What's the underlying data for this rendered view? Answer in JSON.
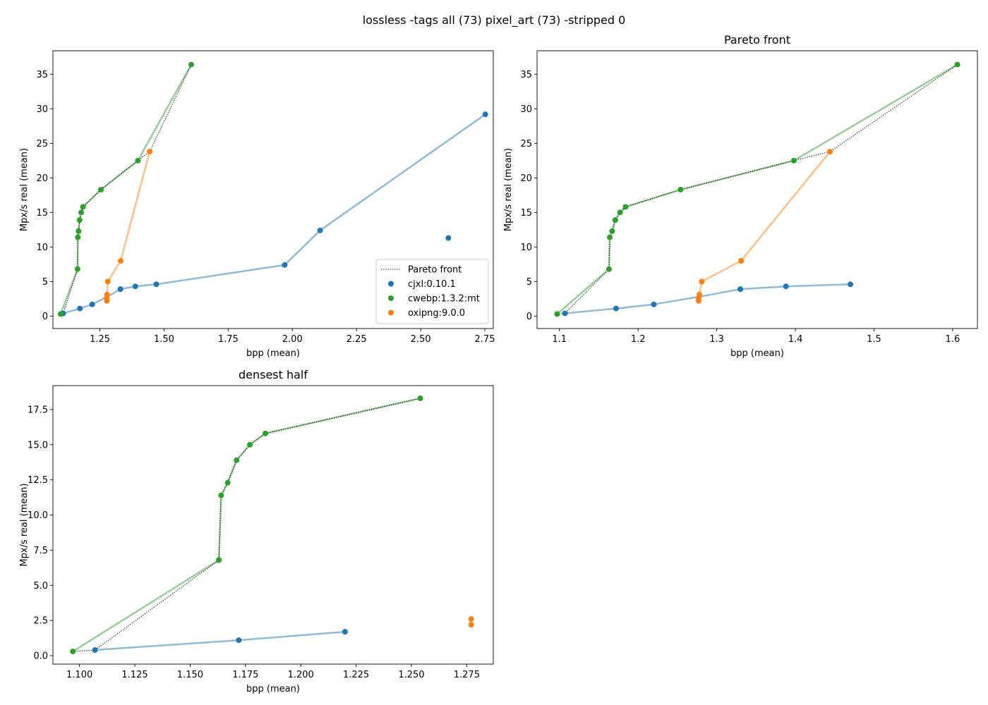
{
  "figure": {
    "suptitle": "lossless -tags all (73) pixel_art (73) -stripped 0"
  },
  "colors": {
    "cjxl:0.10.1": "#1f77b4",
    "cwebp:1.3.2:mt": "#2ca02c",
    "oxipng:9.0.0": "#ff7f0e",
    "pareto": "#000000"
  },
  "legend": {
    "panel": 0,
    "location": "lower-right",
    "entries": [
      {
        "label": "Pareto front",
        "kind": "line"
      },
      {
        "label": "cjxl:0.10.1",
        "kind": "marker",
        "series": "cjxl:0.10.1"
      },
      {
        "label": "cwebp:1.3.2:mt",
        "kind": "marker",
        "series": "cwebp:1.3.2:mt"
      },
      {
        "label": "oxipng:9.0.0",
        "kind": "marker",
        "series": "oxipng:9.0.0"
      }
    ]
  },
  "chart_data": [
    {
      "type": "scatter",
      "title": "",
      "xlabel": "bpp (mean)",
      "ylabel": "Mpx/s real (mean)",
      "xlim": [
        1.067,
        2.783
      ],
      "ylim": [
        -1.8,
        38.4
      ],
      "xticks": [
        1.25,
        1.5,
        1.75,
        2.0,
        2.25,
        2.5,
        2.75
      ],
      "xtick_labels": [
        "1.25",
        "1.50",
        "1.75",
        "2.00",
        "2.25",
        "2.50",
        "2.75"
      ],
      "yticks": [
        0,
        5,
        10,
        15,
        20,
        25,
        30,
        35
      ],
      "ytick_labels": [
        "0",
        "5",
        "10",
        "15",
        "20",
        "25",
        "30",
        "35"
      ],
      "legend": "lower-right",
      "series": [
        {
          "name": "cjxl:0.10.1",
          "points": [
            [
              1.107,
              0.4
            ],
            [
              1.172,
              1.1
            ],
            [
              1.22,
              1.7
            ],
            [
              1.33,
              3.9
            ],
            [
              1.388,
              4.3
            ],
            [
              1.47,
              4.6
            ],
            [
              1.97,
              7.4
            ],
            [
              2.108,
              12.4
            ],
            [
              2.752,
              29.2
            ],
            [
              2.608,
              11.3
            ]
          ],
          "line": [
            [
              1.107,
              0.4
            ],
            [
              1.172,
              1.1
            ],
            [
              1.22,
              1.7
            ],
            [
              1.278,
              2.8
            ],
            [
              1.33,
              3.9
            ],
            [
              1.388,
              4.3
            ],
            [
              1.47,
              4.6
            ],
            [
              1.97,
              7.4
            ],
            [
              2.108,
              12.4
            ],
            [
              2.752,
              29.2
            ]
          ]
        },
        {
          "name": "cwebp:1.3.2:mt",
          "points": [
            [
              1.097,
              0.3
            ],
            [
              1.163,
              6.8
            ],
            [
              1.164,
              11.4
            ],
            [
              1.167,
              12.3
            ],
            [
              1.171,
              13.9
            ],
            [
              1.177,
              15.0
            ],
            [
              1.184,
              15.8
            ],
            [
              1.254,
              18.3
            ],
            [
              1.398,
              22.5
            ],
            [
              1.606,
              36.4
            ]
          ],
          "line": [
            [
              1.097,
              0.3
            ],
            [
              1.163,
              6.8
            ],
            [
              1.164,
              11.4
            ],
            [
              1.167,
              12.3
            ],
            [
              1.171,
              13.9
            ],
            [
              1.177,
              15.0
            ],
            [
              1.184,
              15.8
            ],
            [
              1.254,
              18.3
            ],
            [
              1.398,
              22.5
            ],
            [
              1.606,
              36.4
            ]
          ]
        },
        {
          "name": "oxipng:9.0.0",
          "points": [
            [
              1.277,
              2.2
            ],
            [
              1.277,
              2.6
            ],
            [
              1.278,
              3.1
            ],
            [
              1.281,
              5.0
            ],
            [
              1.331,
              8.0
            ],
            [
              1.444,
              23.8
            ]
          ],
          "line": [
            [
              1.277,
              2.2
            ],
            [
              1.277,
              2.6
            ],
            [
              1.278,
              3.1
            ],
            [
              1.281,
              5.0
            ],
            [
              1.331,
              8.0
            ],
            [
              1.444,
              23.8
            ]
          ]
        }
      ],
      "pareto_front": [
        [
          1.097,
          0.3
        ],
        [
          1.107,
          0.4
        ],
        [
          1.163,
          6.8
        ],
        [
          1.164,
          11.4
        ],
        [
          1.167,
          12.3
        ],
        [
          1.171,
          13.9
        ],
        [
          1.177,
          15.0
        ],
        [
          1.184,
          15.8
        ],
        [
          1.254,
          18.3
        ],
        [
          1.398,
          22.5
        ],
        [
          1.444,
          23.8
        ],
        [
          1.606,
          36.4
        ]
      ]
    },
    {
      "type": "scatter",
      "title": "Pareto front",
      "xlabel": "bpp (mean)",
      "ylabel": "Mpx/s real (mean)",
      "xlim": [
        1.0715,
        1.6315
      ],
      "ylim": [
        -1.8,
        38.4
      ],
      "xticks": [
        1.1,
        1.2,
        1.3,
        1.4,
        1.5,
        1.6
      ],
      "xtick_labels": [
        "1.1",
        "1.2",
        "1.3",
        "1.4",
        "1.5",
        "1.6"
      ],
      "yticks": [
        0,
        5,
        10,
        15,
        20,
        25,
        30,
        35
      ],
      "ytick_labels": [
        "0",
        "5",
        "10",
        "15",
        "20",
        "25",
        "30",
        "35"
      ],
      "series": [
        {
          "name": "cjxl:0.10.1",
          "points": [
            [
              1.107,
              0.4
            ],
            [
              1.172,
              1.1
            ],
            [
              1.22,
              1.7
            ],
            [
              1.33,
              3.9
            ],
            [
              1.388,
              4.3
            ],
            [
              1.47,
              4.6
            ]
          ],
          "line": [
            [
              1.107,
              0.4
            ],
            [
              1.172,
              1.1
            ],
            [
              1.22,
              1.7
            ],
            [
              1.278,
              2.8
            ],
            [
              1.33,
              3.9
            ],
            [
              1.388,
              4.3
            ],
            [
              1.47,
              4.6
            ]
          ]
        },
        {
          "name": "cwebp:1.3.2:mt",
          "points": [
            [
              1.097,
              0.3
            ],
            [
              1.163,
              6.8
            ],
            [
              1.164,
              11.4
            ],
            [
              1.167,
              12.3
            ],
            [
              1.171,
              13.9
            ],
            [
              1.177,
              15.0
            ],
            [
              1.184,
              15.8
            ],
            [
              1.254,
              18.3
            ],
            [
              1.398,
              22.5
            ],
            [
              1.606,
              36.4
            ]
          ],
          "line": [
            [
              1.097,
              0.3
            ],
            [
              1.163,
              6.8
            ],
            [
              1.164,
              11.4
            ],
            [
              1.167,
              12.3
            ],
            [
              1.171,
              13.9
            ],
            [
              1.177,
              15.0
            ],
            [
              1.184,
              15.8
            ],
            [
              1.254,
              18.3
            ],
            [
              1.398,
              22.5
            ],
            [
              1.606,
              36.4
            ]
          ]
        },
        {
          "name": "oxipng:9.0.0",
          "points": [
            [
              1.277,
              2.2
            ],
            [
              1.277,
              2.6
            ],
            [
              1.278,
              3.1
            ],
            [
              1.281,
              5.0
            ],
            [
              1.331,
              8.0
            ],
            [
              1.444,
              23.8
            ]
          ],
          "line": [
            [
              1.277,
              2.2
            ],
            [
              1.277,
              2.6
            ],
            [
              1.278,
              3.1
            ],
            [
              1.281,
              5.0
            ],
            [
              1.331,
              8.0
            ],
            [
              1.444,
              23.8
            ]
          ]
        }
      ],
      "pareto_front": [
        [
          1.097,
          0.3
        ],
        [
          1.107,
          0.4
        ],
        [
          1.163,
          6.8
        ],
        [
          1.164,
          11.4
        ],
        [
          1.167,
          12.3
        ],
        [
          1.171,
          13.9
        ],
        [
          1.177,
          15.0
        ],
        [
          1.184,
          15.8
        ],
        [
          1.254,
          18.3
        ],
        [
          1.398,
          22.5
        ],
        [
          1.444,
          23.8
        ],
        [
          1.606,
          36.4
        ]
      ]
    },
    {
      "type": "scatter",
      "title": "densest half",
      "xlabel": "bpp (mean)",
      "ylabel": "Mpx/s real (mean)",
      "xlim": [
        1.088,
        1.287
      ],
      "ylim": [
        -0.6,
        19.2
      ],
      "xticks": [
        1.1,
        1.125,
        1.15,
        1.175,
        1.2,
        1.225,
        1.25,
        1.275
      ],
      "xtick_labels": [
        "1.100",
        "1.125",
        "1.150",
        "1.175",
        "1.200",
        "1.225",
        "1.250",
        "1.275"
      ],
      "yticks": [
        0.0,
        2.5,
        5.0,
        7.5,
        10.0,
        12.5,
        15.0,
        17.5
      ],
      "ytick_labels": [
        "0.0",
        "2.5",
        "5.0",
        "7.5",
        "10.0",
        "12.5",
        "15.0",
        "17.5"
      ],
      "series": [
        {
          "name": "cjxl:0.10.1",
          "points": [
            [
              1.107,
              0.4
            ],
            [
              1.172,
              1.1
            ],
            [
              1.22,
              1.7
            ]
          ],
          "line": [
            [
              1.107,
              0.4
            ],
            [
              1.172,
              1.1
            ],
            [
              1.22,
              1.7
            ]
          ]
        },
        {
          "name": "cwebp:1.3.2:mt",
          "points": [
            [
              1.097,
              0.3
            ],
            [
              1.163,
              6.8
            ],
            [
              1.164,
              11.4
            ],
            [
              1.167,
              12.3
            ],
            [
              1.171,
              13.9
            ],
            [
              1.177,
              15.0
            ],
            [
              1.184,
              15.8
            ],
            [
              1.254,
              18.3
            ]
          ],
          "line": [
            [
              1.097,
              0.3
            ],
            [
              1.163,
              6.8
            ],
            [
              1.164,
              11.4
            ],
            [
              1.167,
              12.3
            ],
            [
              1.171,
              13.9
            ],
            [
              1.177,
              15.0
            ],
            [
              1.184,
              15.8
            ],
            [
              1.254,
              18.3
            ]
          ]
        },
        {
          "name": "oxipng:9.0.0",
          "points": [
            [
              1.277,
              2.2
            ],
            [
              1.277,
              2.6
            ]
          ],
          "line": []
        }
      ],
      "pareto_front": [
        [
          1.097,
          0.3
        ],
        [
          1.107,
          0.4
        ],
        [
          1.163,
          6.8
        ],
        [
          1.164,
          11.4
        ],
        [
          1.167,
          12.3
        ],
        [
          1.171,
          13.9
        ],
        [
          1.177,
          15.0
        ],
        [
          1.184,
          15.8
        ],
        [
          1.254,
          18.3
        ]
      ]
    }
  ]
}
